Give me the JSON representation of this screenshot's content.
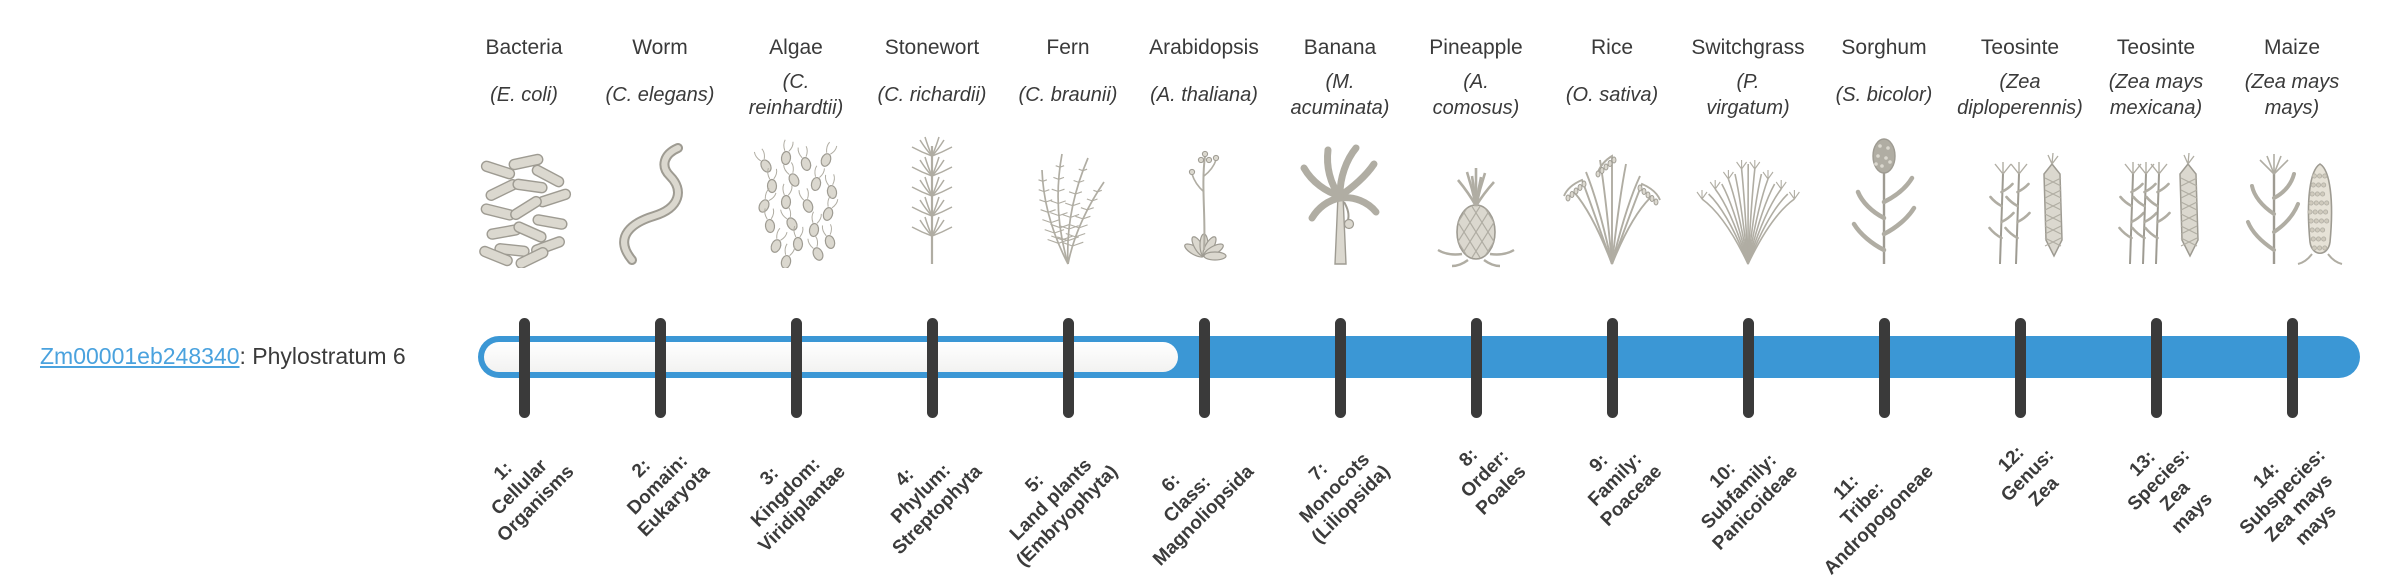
{
  "gene": {
    "id": "Zm00001eb248340",
    "suffix": ": Phylostratum 6"
  },
  "colors": {
    "bar_fill": "#3b97d5",
    "bar_track": "#f5f5f4",
    "tick": "#3a3a3a",
    "link": "#4aa2de",
    "text": "#3a3a3a",
    "artwork_gray": "#9e9b92"
  },
  "chart_data": {
    "type": "phylostratum-timeline",
    "title": "Zm00001eb248340: Phylostratum 6",
    "gene_id": "Zm00001eb248340",
    "assigned_phylostratum": 6,
    "num_phylostrata": 14,
    "filled_range": [
      6,
      14
    ],
    "organisms": [
      {
        "common": "Bacteria",
        "sci": [
          "(E. coli)"
        ],
        "icon": "bacteria-image"
      },
      {
        "common": "Worm",
        "sci": [
          "(C. elegans)"
        ],
        "icon": "worm-image"
      },
      {
        "common": "Algae",
        "sci": [
          "(C.",
          "reinhardtii)"
        ],
        "icon": "algae-image"
      },
      {
        "common": "Stonewort",
        "sci": [
          "(C. richardii)"
        ],
        "icon": "stonewort-image"
      },
      {
        "common": "Fern",
        "sci": [
          "(C. braunii)"
        ],
        "icon": "fern-image"
      },
      {
        "common": "Arabidopsis",
        "sci": [
          "(A. thaliana)"
        ],
        "icon": "arabidopsis-image"
      },
      {
        "common": "Banana",
        "sci": [
          "(M.",
          "acuminata)"
        ],
        "icon": "banana-image"
      },
      {
        "common": "Pineapple",
        "sci": [
          "(A.",
          "comosus)"
        ],
        "icon": "pineapple-image"
      },
      {
        "common": "Rice",
        "sci": [
          "(O. sativa)"
        ],
        "icon": "rice-image"
      },
      {
        "common": "Switchgrass",
        "sci": [
          "(P.",
          "virgatum)"
        ],
        "icon": "switchgrass-image"
      },
      {
        "common": "Sorghum",
        "sci": [
          "(S. bicolor)"
        ],
        "icon": "sorghum-image"
      },
      {
        "common": "Teosinte",
        "sci": [
          "(Zea",
          "diploperennis)"
        ],
        "icon": "teosinte-diploperennis-image"
      },
      {
        "common": "Teosinte",
        "sci": [
          "(Zea mays",
          "mexicana)"
        ],
        "icon": "teosinte-mexicana-image"
      },
      {
        "common": "Maize",
        "sci": [
          "(Zea mays",
          "mays)"
        ],
        "icon": "maize-image"
      }
    ],
    "phylostrata": [
      {
        "num": 1,
        "label": [
          "1:",
          "Cellular",
          "Organisms"
        ]
      },
      {
        "num": 2,
        "label": [
          "2:",
          "Domain:",
          "Eukaryota"
        ]
      },
      {
        "num": 3,
        "label": [
          "3:",
          "Kingdom:",
          "Viridiplantae"
        ]
      },
      {
        "num": 4,
        "label": [
          "4:",
          "Phylum:",
          "Streptophyta"
        ]
      },
      {
        "num": 5,
        "label": [
          "5:",
          "Land plants",
          "(Embryophyta)"
        ]
      },
      {
        "num": 6,
        "label": [
          "6:",
          "Class:",
          "Magnoliopsida"
        ]
      },
      {
        "num": 7,
        "label": [
          "7:",
          "Monocots",
          "(Liliopsida)"
        ]
      },
      {
        "num": 8,
        "label": [
          "8:",
          "Order:",
          "Poales"
        ]
      },
      {
        "num": 9,
        "label": [
          "9:",
          "Family:",
          "Poaceae"
        ]
      },
      {
        "num": 10,
        "label": [
          "10:",
          "Subfamily:",
          "Panicoideae"
        ]
      },
      {
        "num": 11,
        "label": [
          "11:",
          "Tribe:",
          "Andropogoneae"
        ]
      },
      {
        "num": 12,
        "label": [
          "12:",
          "Genus:",
          "Zea"
        ]
      },
      {
        "num": 13,
        "label": [
          "13:",
          "Species:",
          "Zea",
          "mays"
        ]
      },
      {
        "num": 14,
        "label": [
          "14:",
          "Subspecies:",
          "Zea mays",
          "mays"
        ]
      }
    ]
  }
}
